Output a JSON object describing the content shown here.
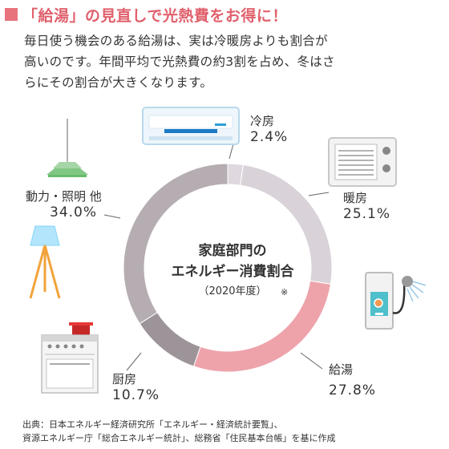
{
  "heading": {
    "title": "「給湯」の見直しで光熱費をお得に！",
    "accent_color": "#e8737d"
  },
  "intro": [
    "毎日使う機会のある給湯は、実は冷暖房よりも割合が",
    "高いのです。年間平均で光熱費の約3割を占め、冬はさ",
    "らにその割合が大きくなります。"
  ],
  "chart_data": {
    "type": "pie",
    "donut": true,
    "title": "家庭部門の",
    "title_line2": "エネルギー消費割合",
    "subtitle": "（2020年度）",
    "note": "※",
    "slices": [
      {
        "label": "冷房",
        "percent_text": "2.4%",
        "value": 2.4,
        "color": "#e0d8df",
        "icon": "air-conditioner-icon"
      },
      {
        "label": "暖房",
        "percent_text": "25.1%",
        "value": 25.1,
        "color": "#d9d2d8",
        "icon": "heater-icon"
      },
      {
        "label": "給湯",
        "percent_text": "27.8%",
        "value": 27.8,
        "color": "#eea3ab",
        "icon": "water-heater-shower-icon"
      },
      {
        "label": "厨房",
        "percent_text": "10.7%",
        "value": 10.7,
        "color": "#9d9499",
        "icon": "kitchen-stove-icon"
      },
      {
        "label": "動力・照明 他",
        "percent_text": "34.0%",
        "value": 34.0,
        "color": "#b5adb2",
        "icon": "lamp-icon"
      }
    ]
  },
  "source": {
    "line1": "出典：日本エネルギー経済研究所「エネルギー・経済統計要覧」、",
    "line2": "資源エネルギー庁「総合エネルギー統計」、総務省「住民基本台帳」を基に作成"
  }
}
